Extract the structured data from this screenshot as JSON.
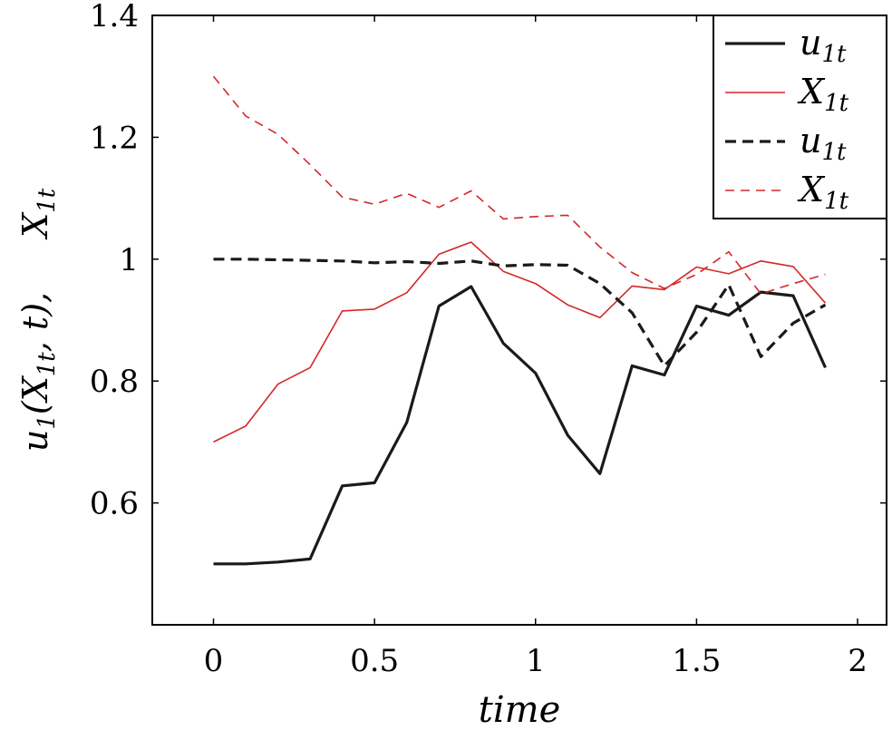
{
  "chart_data": {
    "type": "line",
    "xlabel": "time",
    "ylabel": "u_1(X_{1t}, t), X_{1t}",
    "xlim": [
      -0.19,
      2.09
    ],
    "ylim": [
      0.4,
      1.4
    ],
    "x_ticks": [
      "0",
      "0.5",
      "1",
      "1.5",
      "2"
    ],
    "y_ticks": [
      "0.6",
      "0.8",
      "1",
      "1.2",
      "1.4"
    ],
    "legend_position": "top-right",
    "x": [
      0,
      0.1,
      0.2,
      0.3,
      0.4,
      0.5,
      0.6,
      0.7,
      0.8,
      0.9,
      1.0,
      1.1,
      1.2,
      1.3,
      1.4,
      1.5,
      1.6,
      1.7,
      1.8,
      1.9
    ],
    "series": [
      {
        "name": "u_{1t}",
        "color": "#1a1a1a",
        "dash": "solid",
        "values": [
          0.5,
          0.5,
          0.503,
          0.508,
          0.628,
          0.633,
          0.732,
          0.923,
          0.955,
          0.862,
          0.813,
          0.711,
          0.648,
          0.825,
          0.81,
          0.923,
          0.908,
          0.946,
          0.94,
          0.822
        ]
      },
      {
        "name": "X_{1t}",
        "color": "#d62728",
        "dash": "solid",
        "values": [
          0.7,
          0.726,
          0.795,
          0.822,
          0.915,
          0.918,
          0.945,
          1.008,
          1.028,
          0.98,
          0.96,
          0.925,
          0.904,
          0.956,
          0.95,
          0.987,
          0.976,
          0.997,
          0.988,
          0.928
        ]
      },
      {
        "name": "u_{1t}",
        "color": "#1a1a1a",
        "dash": "dashed",
        "values": [
          1.0,
          1.0,
          0.999,
          0.998,
          0.997,
          0.994,
          0.996,
          0.993,
          0.997,
          0.989,
          0.991,
          0.99,
          0.96,
          0.912,
          0.825,
          0.88,
          0.958,
          0.84,
          0.895,
          0.925
        ]
      },
      {
        "name": "X_{1t}",
        "color": "#d62728",
        "dash": "dashed",
        "values": [
          1.3,
          1.235,
          1.205,
          1.155,
          1.102,
          1.09,
          1.108,
          1.085,
          1.112,
          1.066,
          1.07,
          1.072,
          1.02,
          0.978,
          0.952,
          0.975,
          1.012,
          0.943,
          0.96,
          0.975
        ]
      }
    ]
  }
}
